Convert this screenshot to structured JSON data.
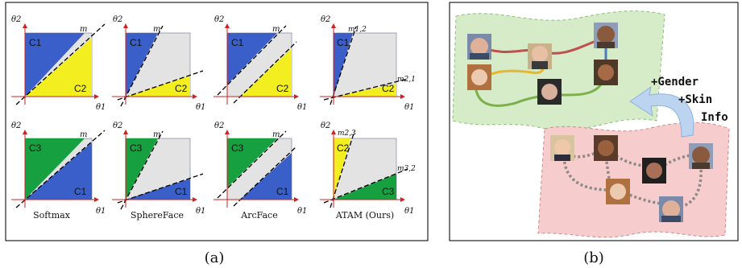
{
  "panel_a": {
    "caption": "(a)",
    "axis_x": "θ1",
    "axis_y": "θ2",
    "columns": [
      {
        "name": "Softmax",
        "top": {
          "regions": [
            {
              "label": "C1",
              "color": "#3a5fc8"
            },
            {
              "label": "C2",
              "color": "#f2ee1f"
            }
          ],
          "margins": [
            "m"
          ]
        },
        "bottom": {
          "regions": [
            {
              "label": "C3",
              "color": "#16a040"
            },
            {
              "label": "C1",
              "color": "#3a5fc8"
            }
          ],
          "margins": [
            "m"
          ]
        }
      },
      {
        "name": "SphereFace",
        "top": {
          "regions": [
            {
              "label": "C1",
              "color": "#3a5fc8"
            },
            {
              "label": "C2",
              "color": "#f2ee1f"
            }
          ],
          "margins": [
            "m"
          ]
        },
        "bottom": {
          "regions": [
            {
              "label": "C3",
              "color": "#16a040"
            },
            {
              "label": "C1",
              "color": "#3a5fc8"
            }
          ],
          "margins": [
            "m"
          ]
        }
      },
      {
        "name": "ArcFace",
        "top": {
          "regions": [
            {
              "label": "C1",
              "color": "#3a5fc8"
            },
            {
              "label": "C2",
              "color": "#f2ee1f"
            }
          ],
          "margins": [
            "m"
          ]
        },
        "bottom": {
          "regions": [
            {
              "label": "C3",
              "color": "#16a040"
            },
            {
              "label": "C1",
              "color": "#3a5fc8"
            }
          ],
          "margins": [
            "m"
          ]
        }
      },
      {
        "name": "ATAM (Ours)",
        "top": {
          "regions": [
            {
              "label": "C1",
              "color": "#3a5fc8"
            },
            {
              "label": "C2",
              "color": "#f2ee1f"
            }
          ],
          "margins": [
            "m1,2",
            "m2,1"
          ]
        },
        "bottom": {
          "regions": [
            {
              "label": "C2",
              "color": "#f2ee1f"
            },
            {
              "label": "C3",
              "color": "#16a040"
            }
          ],
          "margins": [
            "m2,3",
            "m3,2"
          ]
        }
      }
    ]
  },
  "panel_b": {
    "caption": "(b)",
    "annotation_lines": [
      "+Gender",
      "+Skin",
      "Info"
    ],
    "colors": {
      "top_region": "#d6ecc8",
      "bottom_region": "#f6cccc",
      "edge_red": "#c0504d",
      "edge_yellow": "#e8b630",
      "edge_green": "#7bb04a",
      "edge_blue": "#4a7cc0",
      "edge_gray": "#8a8a8a",
      "arrow": "#bcd4f0"
    }
  }
}
